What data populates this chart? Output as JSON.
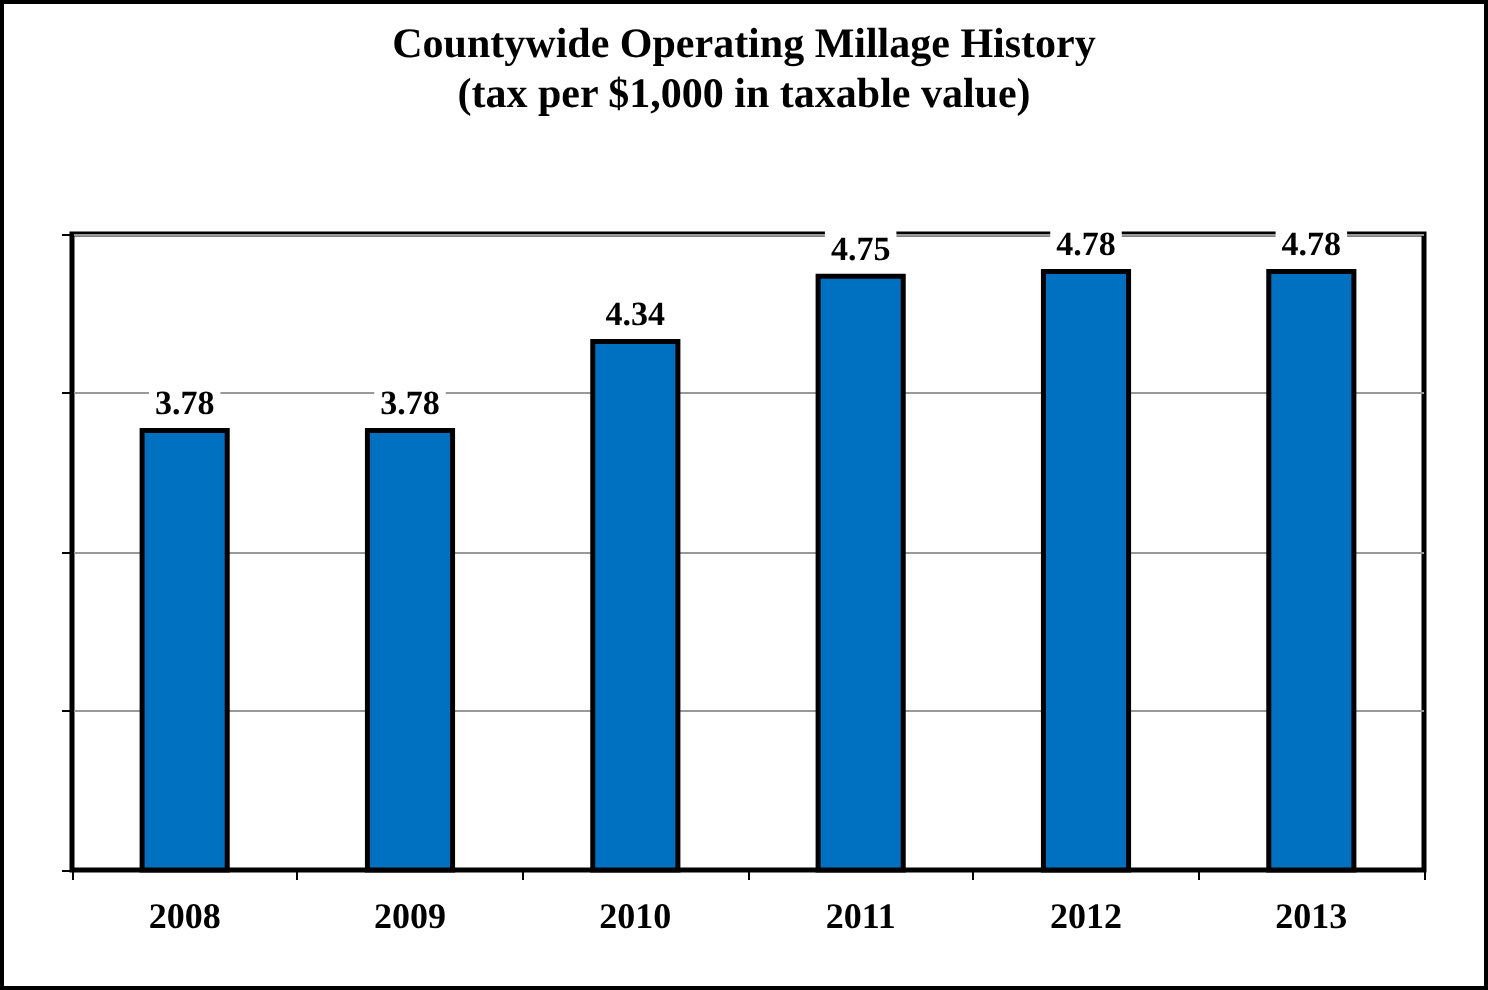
{
  "chart_data": {
    "type": "bar",
    "title": "Countywide Operating Millage History",
    "subtitle": "(tax per $1,000 in taxable value)",
    "categories": [
      "2008",
      "2009",
      "2010",
      "2011",
      "2012",
      "2013"
    ],
    "values": [
      3.78,
      3.78,
      4.34,
      4.75,
      4.78,
      4.78
    ],
    "color": "#0070c0",
    "ylim": [
      1,
      5
    ],
    "yticks": [
      1,
      2,
      3,
      4,
      5
    ],
    "grid": "y",
    "tick_labels": "x",
    "data_labels": true
  }
}
